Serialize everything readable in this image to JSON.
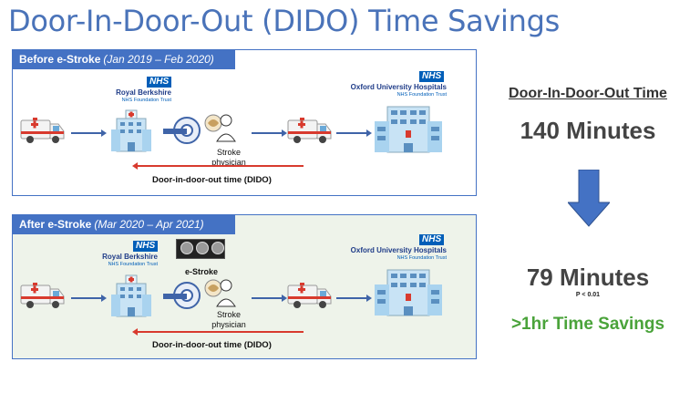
{
  "title": "Door-In-Door-Out (DIDO) Time Savings",
  "before": {
    "header": "Before e-Stroke",
    "period": "(Jan 2019 – Feb 2020)",
    "nhs_left": "NHS",
    "hospital_left": "Royal Berkshire",
    "trust_left": "NHS Foundation Trust",
    "nhs_right": "NHS",
    "hospital_right": "Oxford University Hospitals",
    "trust_right": "NHS Foundation Trust",
    "physician": "Stroke physician",
    "dido_label": "Door-in-door-out time (DIDO)"
  },
  "after": {
    "header": "After e-Stroke",
    "period": "(Mar 2020 – Apr 2021)",
    "nhs_left": "NHS",
    "hospital_left": "Royal Berkshire",
    "trust_left": "NHS Foundation Trust",
    "nhs_right": "NHS",
    "hospital_right": "Oxford University Hospitals",
    "trust_right": "NHS Foundation Trust",
    "estroke": "e-Stroke",
    "physician": "Stroke physician",
    "dido_label": "Door-in-door-out time (DIDO)"
  },
  "summary": {
    "heading": "Door-In-Door-Out Time",
    "before_value": "140 Minutes",
    "after_value": "79 Minutes",
    "p_value": "P < 0.01",
    "savings": ">1hr Time Savings"
  },
  "colors": {
    "title": "#4a73b9",
    "panel_border": "#4472c4",
    "dido_line": "#d83a2e",
    "savings": "#4aa33a",
    "down_arrow": "#4472c4"
  }
}
